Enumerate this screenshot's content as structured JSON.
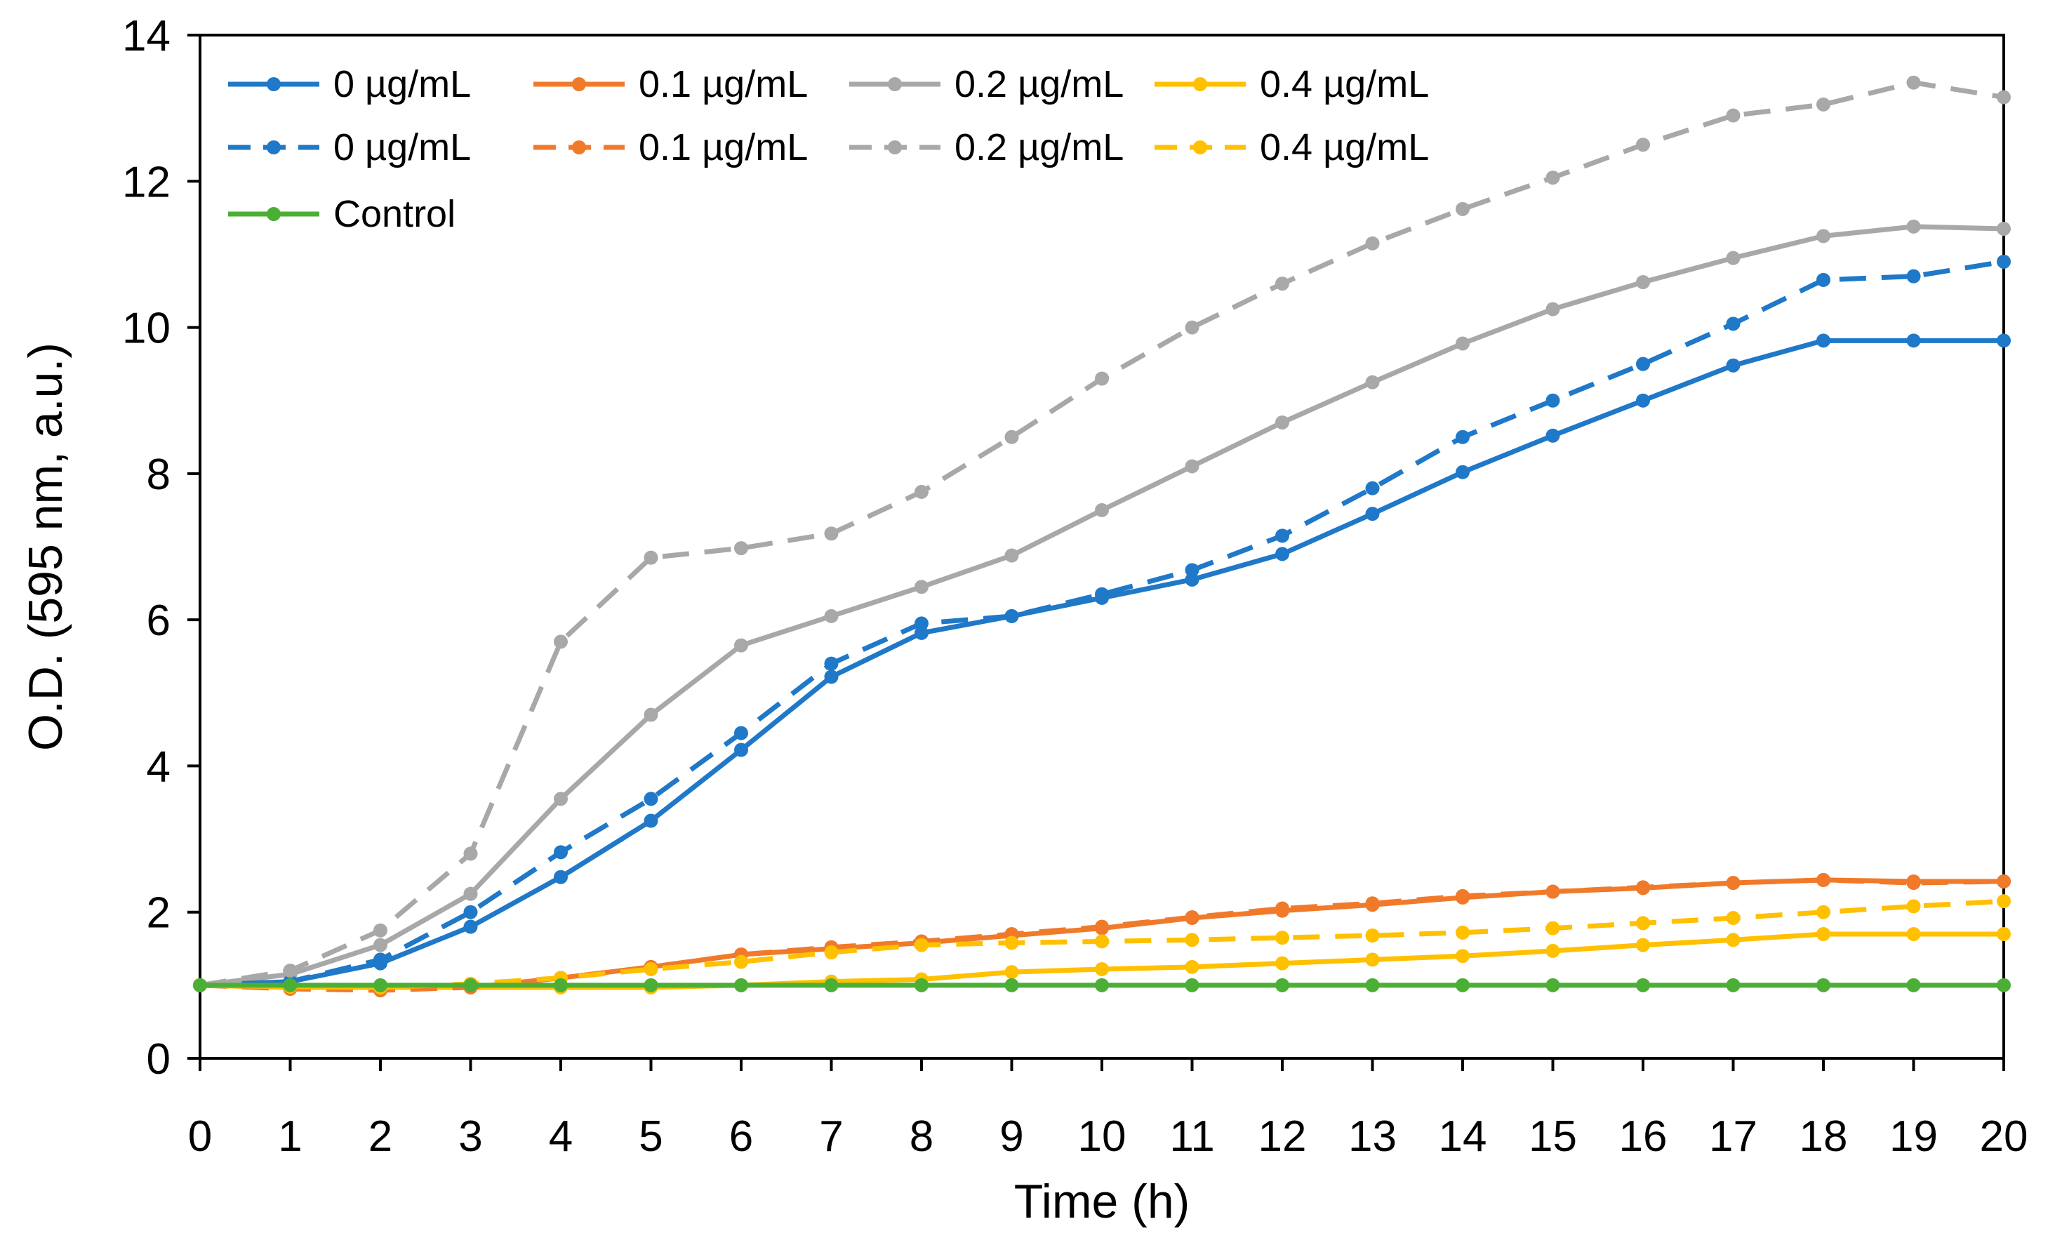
{
  "chart_data": {
    "type": "line",
    "title": "",
    "xlabel": "Time (h)",
    "ylabel": "O.D. (595 nm, a.u.)",
    "xlim": [
      0,
      20
    ],
    "ylim": [
      0,
      14
    ],
    "x": [
      0,
      1,
      2,
      3,
      4,
      5,
      6,
      7,
      8,
      9,
      10,
      11,
      12,
      13,
      14,
      15,
      16,
      17,
      18,
      19,
      20
    ],
    "x_ticks": [
      "0",
      "1",
      "2",
      "3",
      "4",
      "5",
      "6",
      "7",
      "8",
      "9",
      "10",
      "11",
      "12",
      "13",
      "14",
      "15",
      "16",
      "17",
      "18",
      "19",
      "20"
    ],
    "y_ticks": [
      "0",
      "2",
      "4",
      "6",
      "8",
      "10",
      "12",
      "14"
    ],
    "grid": false,
    "legend_position": "top-left",
    "series": [
      {
        "name": "0 µg/mL",
        "style": "solid",
        "color": "#1f78c8",
        "values": [
          1.0,
          1.05,
          1.3,
          1.8,
          2.48,
          3.25,
          4.22,
          5.22,
          5.82,
          6.05,
          6.3,
          6.55,
          6.9,
          7.45,
          8.02,
          8.52,
          9.0,
          9.48,
          9.82,
          9.82,
          9.82
        ]
      },
      {
        "name": "0.1 µg/mL",
        "style": "solid",
        "color": "#f07a2a",
        "values": [
          1.0,
          0.97,
          0.97,
          0.97,
          1.1,
          1.25,
          1.42,
          1.5,
          1.58,
          1.68,
          1.78,
          1.92,
          2.02,
          2.1,
          2.2,
          2.28,
          2.33,
          2.4,
          2.44,
          2.42,
          2.42
        ]
      },
      {
        "name": "0.2 µg/mL",
        "style": "solid",
        "color": "#a8a8a8",
        "values": [
          1.0,
          1.15,
          1.55,
          2.25,
          3.55,
          4.7,
          5.65,
          6.05,
          6.45,
          6.88,
          7.5,
          8.1,
          8.7,
          9.25,
          9.78,
          10.25,
          10.62,
          10.95,
          11.25,
          11.38,
          11.35
        ]
      },
      {
        "name": "0.4 µg/mL",
        "style": "solid",
        "color": "#ffc000",
        "values": [
          1.0,
          0.97,
          0.97,
          0.97,
          0.97,
          0.97,
          1.0,
          1.05,
          1.08,
          1.18,
          1.22,
          1.25,
          1.3,
          1.35,
          1.4,
          1.47,
          1.55,
          1.62,
          1.7,
          1.7,
          1.7
        ]
      },
      {
        "name": "0 µg/mL",
        "style": "dashed",
        "color": "#1f78c8",
        "values": [
          1.0,
          1.05,
          1.35,
          2.0,
          2.82,
          3.55,
          4.45,
          5.4,
          5.95,
          6.05,
          6.35,
          6.68,
          7.15,
          7.8,
          8.5,
          9.0,
          9.5,
          10.05,
          10.65,
          10.7,
          10.9
        ]
      },
      {
        "name": "0.1 µg/mL",
        "style": "dashed",
        "color": "#f07a2a",
        "values": [
          1.0,
          0.95,
          0.93,
          0.97,
          1.1,
          1.25,
          1.42,
          1.52,
          1.6,
          1.7,
          1.8,
          1.93,
          2.05,
          2.12,
          2.22,
          2.28,
          2.34,
          2.4,
          2.44,
          2.4,
          2.42
        ]
      },
      {
        "name": "0.2 µg/mL",
        "style": "dashed",
        "color": "#a8a8a8",
        "values": [
          1.0,
          1.2,
          1.75,
          2.8,
          5.7,
          6.85,
          6.98,
          7.18,
          7.75,
          8.5,
          9.3,
          10.0,
          10.6,
          11.15,
          11.62,
          12.05,
          12.5,
          12.9,
          13.05,
          13.35,
          13.15
        ]
      },
      {
        "name": "0.4 µg/mL",
        "style": "dashed",
        "color": "#ffc000",
        "values": [
          1.0,
          0.98,
          0.97,
          1.02,
          1.1,
          1.22,
          1.32,
          1.45,
          1.55,
          1.58,
          1.6,
          1.62,
          1.65,
          1.68,
          1.72,
          1.78,
          1.85,
          1.92,
          2.0,
          2.08,
          2.15
        ]
      },
      {
        "name": "Control",
        "style": "solid",
        "color": "#4caf35",
        "values": [
          1.0,
          1.0,
          1.0,
          1.0,
          1.0,
          1.0,
          1.0,
          1.0,
          1.0,
          1.0,
          1.0,
          1.0,
          1.0,
          1.0,
          1.0,
          1.0,
          1.0,
          1.0,
          1.0,
          1.0,
          1.0
        ]
      }
    ]
  }
}
